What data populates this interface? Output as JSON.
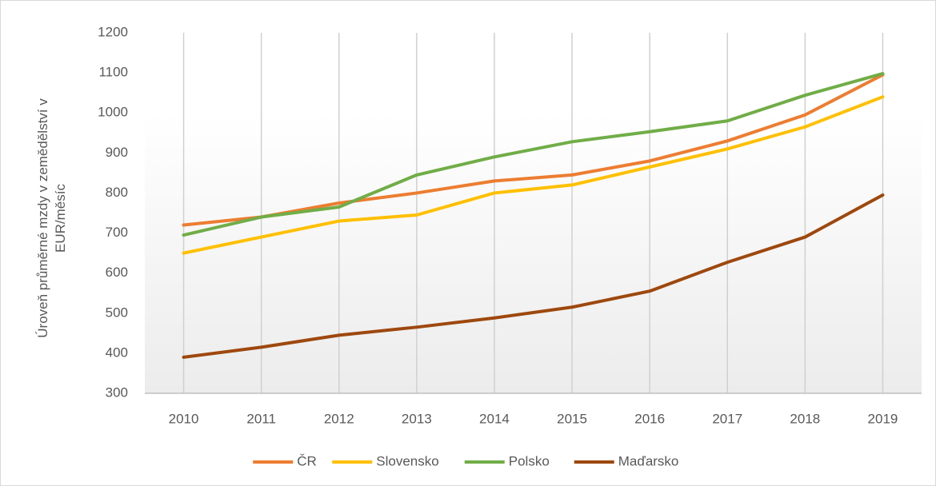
{
  "chart_data": {
    "type": "line",
    "y_label": "Úroveň průměrné mzdy v zemědělství v EUR/měsíc",
    "categories": [
      "2010",
      "2011",
      "2012",
      "2013",
      "2014",
      "2015",
      "2016",
      "2017",
      "2018",
      "2019"
    ],
    "series": [
      {
        "name": "ČR",
        "color": "#ed7d31",
        "values": [
          720,
          740,
          775,
          800,
          830,
          845,
          880,
          930,
          995,
          1095
        ]
      },
      {
        "name": "Slovensko",
        "color": "#ffc000",
        "values": [
          650,
          690,
          730,
          745,
          800,
          820,
          865,
          910,
          965,
          1040
        ]
      },
      {
        "name": "Polsko",
        "color": "#70ad47",
        "values": [
          695,
          740,
          765,
          845,
          890,
          928,
          953,
          980,
          1044,
          1098
        ]
      },
      {
        "name": "Maďarsko",
        "color": "#9e480e",
        "values": [
          390,
          415,
          445,
          465,
          488,
          515,
          555,
          627,
          690,
          795
        ]
      }
    ],
    "ylim": [
      300,
      1200
    ],
    "yticks": [
      300,
      400,
      500,
      600,
      700,
      800,
      900,
      1000,
      1100,
      1200
    ],
    "grid": true,
    "legend": "bottom"
  }
}
